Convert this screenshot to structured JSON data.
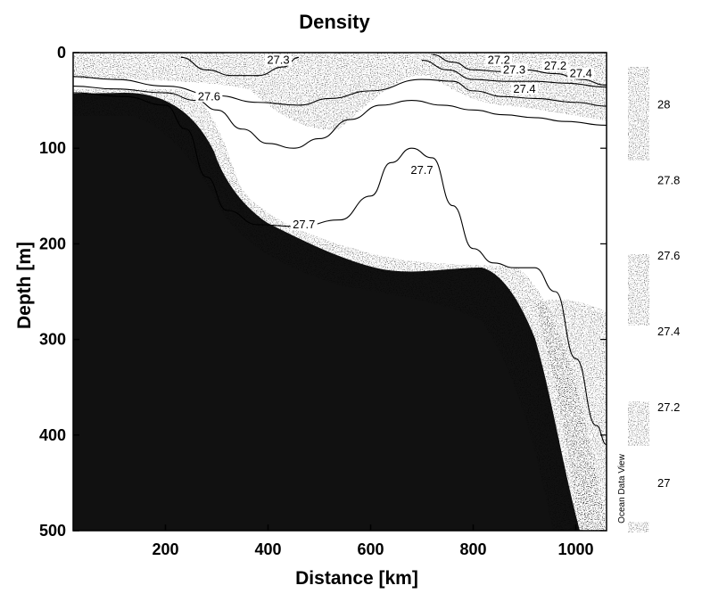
{
  "chart_data": {
    "type": "heatmap",
    "title": "Density",
    "xlabel": "Distance [km]",
    "ylabel": "Depth [m]",
    "xlim": [
      20,
      1060
    ],
    "ylim": [
      0,
      500
    ],
    "y_inverted": true,
    "x_ticks": [
      200,
      400,
      600,
      800,
      1000
    ],
    "y_ticks": [
      0,
      100,
      200,
      300,
      400,
      500
    ],
    "colorbar": {
      "range": [
        26.87,
        28.1
      ],
      "ticks": [
        27,
        27.2,
        27.4,
        27.6,
        27.8,
        28
      ],
      "tick_labels": [
        "27",
        "27.2",
        "27.4",
        "27.6",
        "27.8",
        "28"
      ]
    },
    "credit": "Ocean Data View",
    "contours": [
      {
        "level": "27.3",
        "x": [
          230,
          280,
          330,
          380,
          430,
          460
        ],
        "y": [
          5,
          18,
          24,
          24,
          15,
          5
        ]
      },
      {
        "level": "27.2",
        "x": [
          720,
          760,
          800,
          860,
          900,
          960,
          1010,
          1060
        ],
        "y": [
          2,
          10,
          18,
          20,
          18,
          22,
          28,
          34
        ]
      },
      {
        "level": "27.3",
        "x": [
          700,
          750,
          800,
          860,
          920,
          980,
          1060
        ],
        "y": [
          8,
          18,
          28,
          30,
          30,
          32,
          36
        ]
      },
      {
        "level": "27.4",
        "x": [
          20,
          100,
          200,
          300,
          380,
          460,
          520,
          600,
          700,
          760,
          800,
          860,
          920,
          1000,
          1060
        ],
        "y": [
          25,
          28,
          35,
          45,
          52,
          55,
          48,
          40,
          28,
          30,
          40,
          46,
          48,
          52,
          56
        ]
      },
      {
        "level": "27.6",
        "x": [
          20,
          100,
          200,
          260,
          300,
          350,
          400,
          450,
          500,
          560,
          620,
          680,
          740,
          800,
          860,
          920,
          980,
          1060
        ],
        "y": [
          35,
          38,
          42,
          50,
          60,
          80,
          95,
          100,
          90,
          70,
          55,
          50,
          55,
          60,
          65,
          68,
          72,
          76
        ]
      },
      {
        "level": "27.7",
        "x": [
          20,
          120,
          200,
          240,
          280,
          320,
          380,
          460,
          540,
          600,
          640,
          680,
          720,
          760,
          800,
          840,
          880,
          920,
          960,
          1000,
          1040,
          1060
        ],
        "y": [
          42,
          46,
          55,
          80,
          130,
          165,
          180,
          182,
          175,
          150,
          115,
          100,
          110,
          160,
          205,
          220,
          225,
          225,
          250,
          320,
          390,
          410
        ]
      }
    ],
    "contour_labels": [
      {
        "text": "27.3",
        "x": 420,
        "y": 10
      },
      {
        "text": "27.2",
        "x": 850,
        "y": 10
      },
      {
        "text": "27.3",
        "x": 880,
        "y": 20
      },
      {
        "text": "27.2",
        "x": 960,
        "y": 16
      },
      {
        "text": "27.4",
        "x": 1010,
        "y": 24
      },
      {
        "text": "27.4",
        "x": 900,
        "y": 40
      },
      {
        "text": "27.6",
        "x": 285,
        "y": 48
      },
      {
        "text": "27.7",
        "x": 470,
        "y": 182
      },
      {
        "text": "27.7",
        "x": 700,
        "y": 125
      }
    ]
  }
}
